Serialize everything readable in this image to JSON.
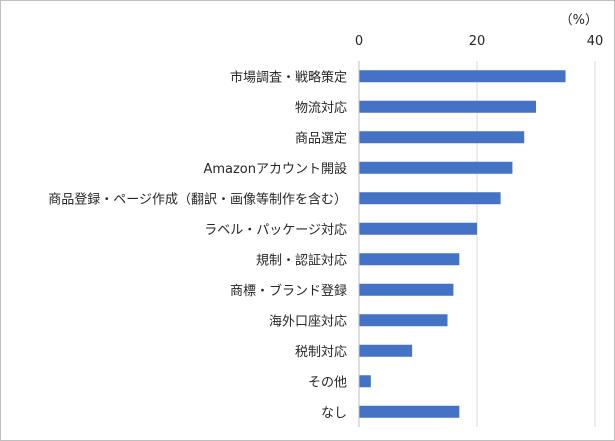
{
  "chart_data": {
    "type": "bar",
    "orientation": "horizontal",
    "unit_label": "（%）",
    "categories": [
      "市場調査・戦略策定",
      "物流対応",
      "商品選定",
      "Amazonアカウント開設",
      "商品登録・ページ作成（翻訳・画像等制作を含む）",
      "ラベル・パッケージ対応",
      "規制・認証対応",
      "商標・ブランド登録",
      "海外口座対応",
      "税制対応",
      "その他",
      "なし"
    ],
    "values": [
      35,
      30,
      28,
      26,
      24,
      20,
      17,
      16,
      15,
      9,
      2,
      17
    ],
    "xlim": [
      0,
      40
    ],
    "xticks": [
      0,
      20,
      40
    ],
    "grid": true,
    "legend": "none",
    "colors": {
      "bar": "#4472c4",
      "grid": "#d9d9d9",
      "axis": "#bfbfbf",
      "text": "#262626",
      "border": "#bfbfbf"
    }
  }
}
